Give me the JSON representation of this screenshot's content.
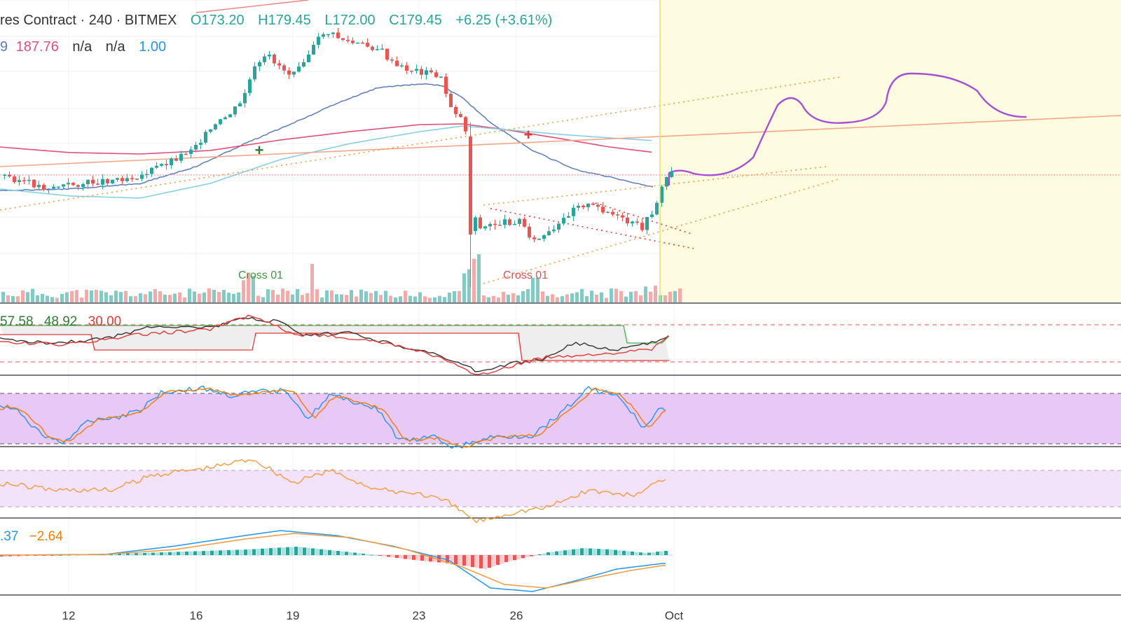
{
  "header": {
    "symbol_fragment": "res Contract · 240 · BITMEX",
    "open": "O173.20",
    "high": "H179.45",
    "low": "L172.00",
    "close": "C179.45",
    "change": "+6.25 (+3.61%)"
  },
  "ma_legend": {
    "v1": "9",
    "v2": "187.76",
    "v3": "n/a",
    "v4": "n/a",
    "v5": "1.00"
  },
  "markers": {
    "cross_green": "Cross 01",
    "cross_red": "Cross 01"
  },
  "indicator1_legend": {
    "a": "57.58",
    "b": "48.92",
    "c": "30.00"
  },
  "macd_legend": {
    "a": ".37",
    "b": "−2.64"
  },
  "x_axis": [
    "12",
    "16",
    "19",
    "23",
    "26",
    "Oct"
  ],
  "colors": {
    "up": "#26a69a",
    "down": "#ef5350",
    "vol_up": "#80cbc4",
    "vol_down": "#f7a9a8",
    "ema_blue": "#5b7bbf",
    "ema_red": "#e0507a",
    "sma_cyan": "#86d0e2",
    "projection": "#a64fd6",
    "highlight": "#fdfce0",
    "stoch_band": "#e8c8f6",
    "rsi_band": "#f3e3fa",
    "orange": "#f39a3c",
    "green_line": "#4caf50"
  },
  "chart_data": {
    "type": "candlestick",
    "timeframe": "240",
    "exchange": "BITMEX",
    "last_bar": {
      "open": 173.2,
      "high": 179.45,
      "low": 172.0,
      "close": 179.45,
      "change": 6.25,
      "change_pct": 3.61
    },
    "x_tick_labels": [
      "12",
      "16",
      "19",
      "23",
      "26",
      "Oct"
    ],
    "annotations": [
      "Cross 01",
      "Cross 01"
    ],
    "panes": [
      "price+volume",
      "oscillator",
      "stochastic",
      "rsi",
      "macd"
    ]
  }
}
